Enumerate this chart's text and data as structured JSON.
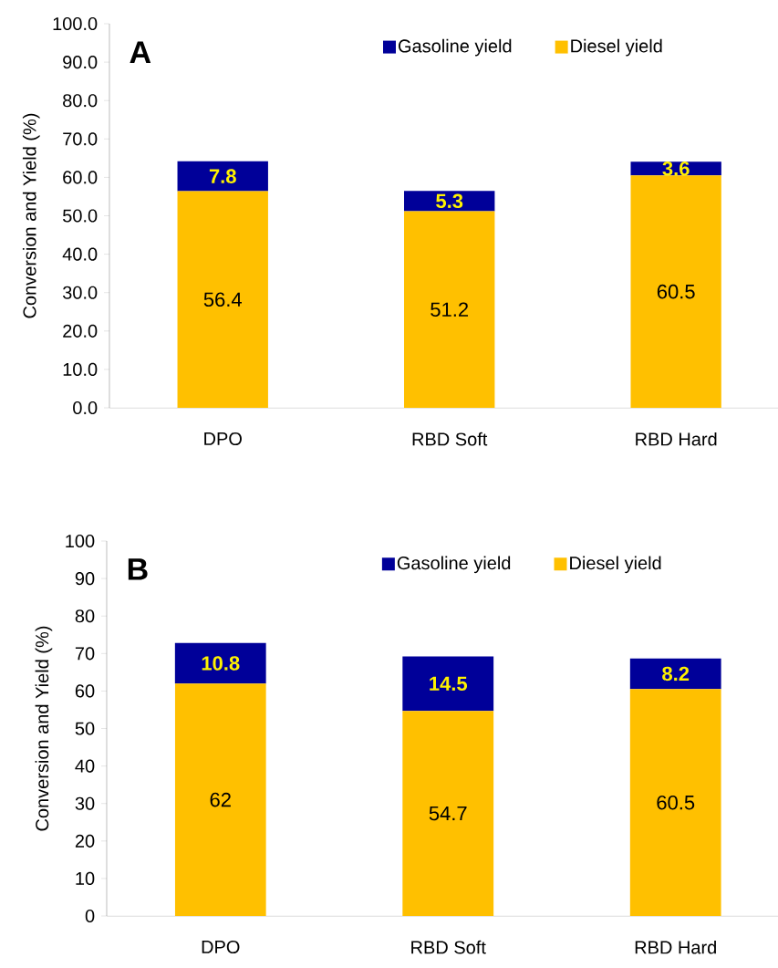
{
  "chart_data": [
    {
      "type": "bar",
      "title": "A",
      "ylabel": "Conversion and Yield (%)",
      "categories": [
        "DPO",
        "RBD Soft",
        "RBD Hard"
      ],
      "stacked": true,
      "data_labels": true,
      "legend": "top",
      "series": [
        {
          "name": "Diesel yield",
          "color": "#ffc000",
          "values": [
            56.4,
            51.2,
            60.5
          ]
        },
        {
          "name": "Gasoline yield",
          "color": "#000099",
          "values": [
            7.8,
            5.3,
            3.6
          ]
        }
      ],
      "ylim": [
        0,
        100
      ],
      "yticks": [
        {
          "value": 0,
          "label": "0.0"
        },
        {
          "value": 10,
          "label": "10.0"
        },
        {
          "value": 20,
          "label": "20.0"
        },
        {
          "value": 30,
          "label": "30.0"
        },
        {
          "value": 40,
          "label": "40.0"
        },
        {
          "value": 50,
          "label": "50.0"
        },
        {
          "value": 60,
          "label": "60.0"
        },
        {
          "value": 70,
          "label": "70.0"
        },
        {
          "value": 80,
          "label": "80.0"
        },
        {
          "value": 90,
          "label": "90.0"
        },
        {
          "value": 100,
          "label": "100.0"
        }
      ]
    },
    {
      "type": "bar",
      "title": "B",
      "ylabel": "Conversion and Yield (%)",
      "categories": [
        "DPO",
        "RBD Soft",
        "RBD Hard"
      ],
      "stacked": true,
      "data_labels": true,
      "legend": "top",
      "series": [
        {
          "name": "Diesel yield",
          "color": "#ffc000",
          "values": [
            62,
            54.7,
            60.5
          ]
        },
        {
          "name": "Gasoline yield",
          "color": "#000099",
          "values": [
            10.8,
            14.5,
            8.2
          ]
        }
      ],
      "ylim": [
        0,
        100
      ],
      "yticks": [
        0,
        10,
        20,
        30,
        40,
        50,
        60,
        70,
        80,
        90,
        100
      ]
    }
  ]
}
